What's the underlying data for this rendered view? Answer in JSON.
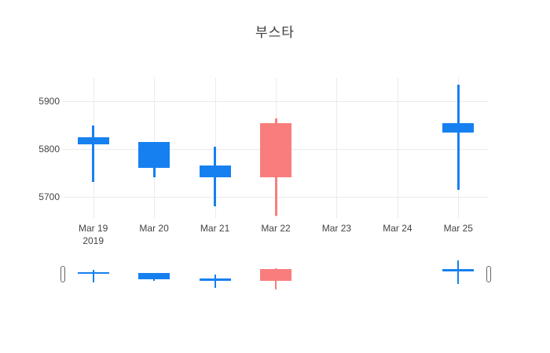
{
  "chart_data": {
    "type": "candlestick",
    "title": "부스타",
    "x_axis": {
      "categories": [
        "Mar 19",
        "Mar 20",
        "Mar 21",
        "Mar 22",
        "Mar 23",
        "Mar 24",
        "Mar 25"
      ],
      "year_label": "2019",
      "year_under_category": "Mar 19"
    },
    "y_axis": {
      "ticks": [
        5900,
        5800,
        5700
      ],
      "range": [
        5655,
        5950
      ]
    },
    "series": [
      {
        "x": "Mar 19",
        "open": 5825,
        "high": 5850,
        "low": 5730,
        "close": 5810,
        "direction": "down"
      },
      {
        "x": "Mar 20",
        "open": 5815,
        "high": 5815,
        "low": 5740,
        "close": 5760,
        "direction": "down"
      },
      {
        "x": "Mar 21",
        "open": 5765,
        "high": 5805,
        "low": 5680,
        "close": 5740,
        "direction": "down"
      },
      {
        "x": "Mar 22",
        "open": 5740,
        "high": 5865,
        "low": 5660,
        "close": 5855,
        "direction": "up"
      },
      {
        "x": "Mar 25",
        "open": 5855,
        "high": 5935,
        "low": 5715,
        "close": 5835,
        "direction": "down"
      }
    ],
    "colors": {
      "increasing": "#FA7D7D",
      "decreasing": "#1780F0",
      "grid": "#EBEBEB",
      "tick_text": "#444444",
      "title_text": "#3D3D3D"
    },
    "legend": "none",
    "grid": true,
    "rangeslider": true
  }
}
